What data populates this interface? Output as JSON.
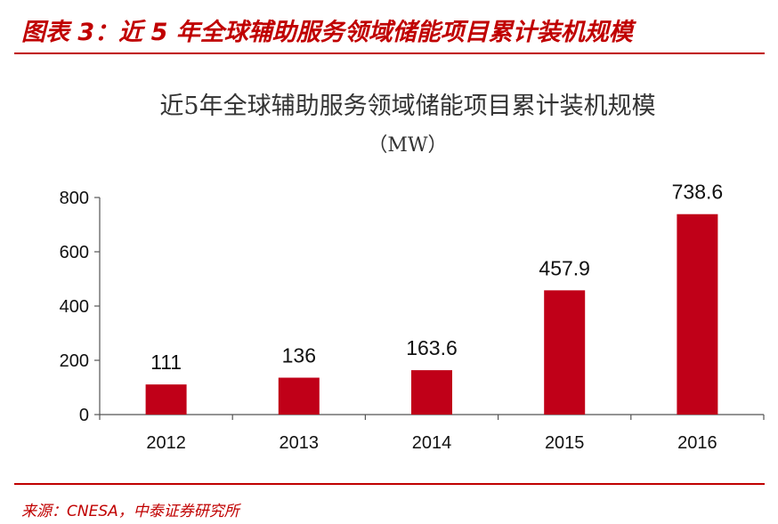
{
  "figure": {
    "title": "图表 3：近 5 年全球辅助服务领域储能项目累计装机规模",
    "source": "来源：CNESA，中泰证券研究所"
  },
  "colors": {
    "accent": "#c00000",
    "bar": "#c00018",
    "axis": "#555555"
  },
  "chart_data": {
    "type": "bar",
    "title": "近5年全球辅助服务领域储能项目累计装机规模",
    "subtitle": "（MW）",
    "categories": [
      "2012",
      "2013",
      "2014",
      "2015",
      "2016"
    ],
    "values": [
      111,
      136,
      163.6,
      457.9,
      738.6
    ],
    "value_labels": [
      "111",
      "136",
      "163.6",
      "457.9",
      "738.6"
    ],
    "yticks": [
      "0",
      "200",
      "400",
      "600",
      "800"
    ],
    "ylim": [
      0,
      800
    ],
    "grid": false,
    "legend": "none"
  }
}
